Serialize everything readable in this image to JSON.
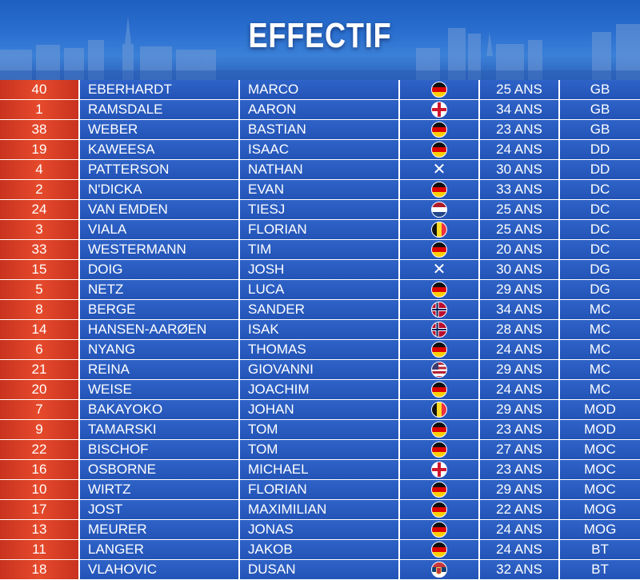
{
  "title": "EFFECTIF",
  "players": [
    {
      "number": "40",
      "last_name": "EBERHARDT",
      "first_name": "MARCO",
      "flag": "germany",
      "age": "25 ANS",
      "position": "GB"
    },
    {
      "number": "1",
      "last_name": "RAMSDALE",
      "first_name": "AARON",
      "flag": "england",
      "age": "34 ANS",
      "position": "GB"
    },
    {
      "number": "38",
      "last_name": "WEBER",
      "first_name": "BASTIAN",
      "flag": "germany",
      "age": "23 ANS",
      "position": "GB"
    },
    {
      "number": "19",
      "last_name": "KAWEESA",
      "first_name": "ISAAC",
      "flag": "germany",
      "age": "24 ANS",
      "position": "DD"
    },
    {
      "number": "4",
      "last_name": "PATTERSON",
      "first_name": "NATHAN",
      "flag": "scotland",
      "age": "30 ANS",
      "position": "DD"
    },
    {
      "number": "2",
      "last_name": "N'DICKA",
      "first_name": "EVAN",
      "flag": "germany",
      "age": "33 ANS",
      "position": "DC"
    },
    {
      "number": "24",
      "last_name": "VAN EMDEN",
      "first_name": "TIESJ",
      "flag": "netherlands",
      "age": "25 ANS",
      "position": "DC"
    },
    {
      "number": "3",
      "last_name": "VIALA",
      "first_name": "FLORIAN",
      "flag": "belgium",
      "age": "25 ANS",
      "position": "DC"
    },
    {
      "number": "33",
      "last_name": "WESTERMANN",
      "first_name": "TIM",
      "flag": "germany",
      "age": "20 ANS",
      "position": "DC"
    },
    {
      "number": "15",
      "last_name": "DOIG",
      "first_name": "JOSH",
      "flag": "scotland",
      "age": "30 ANS",
      "position": "DG"
    },
    {
      "number": "5",
      "last_name": "NETZ",
      "first_name": "LUCA",
      "flag": "germany",
      "age": "29 ANS",
      "position": "DG"
    },
    {
      "number": "8",
      "last_name": "BERGE",
      "first_name": "SANDER",
      "flag": "norway",
      "age": "34 ANS",
      "position": "MC"
    },
    {
      "number": "14",
      "last_name": "HANSEN-AARØEN",
      "first_name": "ISAK",
      "flag": "norway",
      "age": "28 ANS",
      "position": "MC"
    },
    {
      "number": "6",
      "last_name": "NYANG",
      "first_name": "THOMAS",
      "flag": "germany",
      "age": "24 ANS",
      "position": "MC"
    },
    {
      "number": "21",
      "last_name": "REINA",
      "first_name": "GIOVANNI",
      "flag": "usa",
      "age": "29 ANS",
      "position": "MC"
    },
    {
      "number": "20",
      "last_name": "WEISE",
      "first_name": "JOACHIM",
      "flag": "germany",
      "age": "24 ANS",
      "position": "MC"
    },
    {
      "number": "7",
      "last_name": "BAKAYOKO",
      "first_name": "JOHAN",
      "flag": "belgium",
      "age": "29 ANS",
      "position": "MOD"
    },
    {
      "number": "9",
      "last_name": "TAMARSKI",
      "first_name": "TOM",
      "flag": "germany",
      "age": "23 ANS",
      "position": "MOD"
    },
    {
      "number": "22",
      "last_name": "BISCHOF",
      "first_name": "TOM",
      "flag": "germany",
      "age": "27 ANS",
      "position": "MOC"
    },
    {
      "number": "16",
      "last_name": "OSBORNE",
      "first_name": "MICHAEL",
      "flag": "england",
      "age": "23 ANS",
      "position": "MOC"
    },
    {
      "number": "10",
      "last_name": "WIRTZ",
      "first_name": "FLORIAN",
      "flag": "germany",
      "age": "29 ANS",
      "position": "MOC"
    },
    {
      "number": "17",
      "last_name": "JOST",
      "first_name": "MAXIMILIAN",
      "flag": "germany",
      "age": "22 ANS",
      "position": "MOG"
    },
    {
      "number": "13",
      "last_name": "MEURER",
      "first_name": "JONAS",
      "flag": "germany",
      "age": "24 ANS",
      "position": "MOG"
    },
    {
      "number": "11",
      "last_name": "LANGER",
      "first_name": "JAKOB",
      "flag": "germany",
      "age": "24 ANS",
      "position": "BT"
    },
    {
      "number": "18",
      "last_name": "VLAHOVIC",
      "first_name": "DUSAN",
      "flag": "serbia",
      "age": "32 ANS",
      "position": "BT"
    }
  ]
}
